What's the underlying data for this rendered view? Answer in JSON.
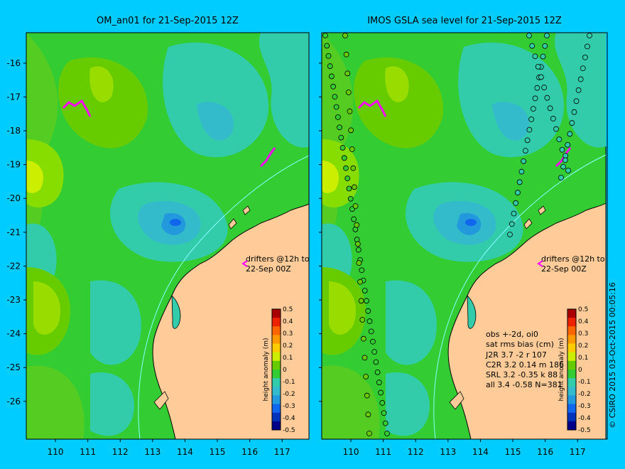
{
  "left_panel": {
    "title": "OM_an01 for 21-Sep-2015 12Z",
    "drifter_note_line1": "drifters @12h to",
    "drifter_note_line2": "22-Sep 00Z",
    "colorbar_label": "height anomaly (m)"
  },
  "right_panel": {
    "title": "IMOS GSLA sea level  for 21-Sep-2015 12Z",
    "drifter_note_line1": "drifters @12h to",
    "drifter_note_line2": "22-Sep 00Z",
    "colorbar_label": "height anomaly (m)",
    "stats": {
      "line1": "obs +-2d, oi0",
      "line2": "sat rms bias (cm)",
      "rows": [
        "J2R    3.7 -2 r 107",
        "C2R    3.2  0.14  m 186",
        "SRL    3.2  -0.35  k 88",
        "all     3.4  -0.58  N=381"
      ]
    }
  },
  "copyright": "© CSIRO 2015   03-Oct-2015 00:05:16",
  "axes": {
    "y_ticks": [
      "-16",
      "-17",
      "-18",
      "-19",
      "-20",
      "-21",
      "-22",
      "-23",
      "-24",
      "-25",
      "-26"
    ],
    "x_ticks": [
      "110",
      "111",
      "112",
      "113",
      "114",
      "115",
      "116",
      "117"
    ]
  },
  "colorbar_ticks": [
    "0.5",
    "0.4",
    "0.3",
    "0.2",
    "0.1",
    "0",
    "-0.1",
    "-0.2",
    "-0.3",
    "-0.4",
    "-0.5"
  ],
  "colors": {
    "background": "#00ccff",
    "land": "#ffcc99",
    "base_sea": "#33cc33",
    "colorbar": [
      "#aa0000",
      "#ee2200",
      "#ff6600",
      "#ff9900",
      "#ffcc00",
      "#ccee00",
      "#66cc00",
      "#33cc33",
      "#33ccaa",
      "#33bbcc",
      "#2299dd",
      "#1166ee",
      "#0033bb",
      "#000088"
    ]
  }
}
